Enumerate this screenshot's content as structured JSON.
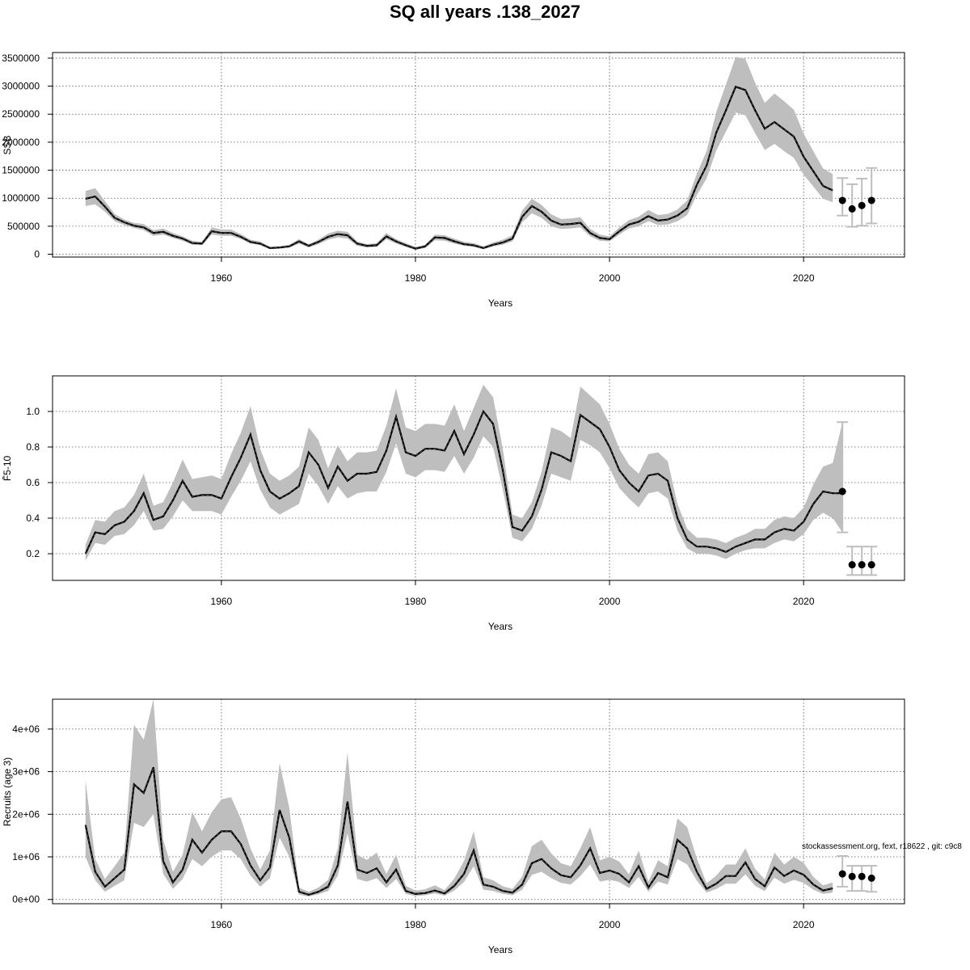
{
  "title": "SQ all years .138_2027",
  "footnote": "stockassessment.org, fext, r18622 , git: c9c8",
  "colors": {
    "band": "#bebebe",
    "line": "#000000",
    "proj_bar": "#bebebe",
    "point": "#000000",
    "grid": "#555555"
  },
  "chart_data": [
    {
      "type": "line",
      "xlabel": "Years",
      "ylabel": "SSB",
      "xlim": [
        1942.6,
        2030.4
      ],
      "ylim": [
        -50000,
        3600000
      ],
      "xticks": [
        1960,
        1980,
        2000,
        2020
      ],
      "yticks": [
        0,
        500000,
        1000000,
        1500000,
        2000000,
        2500000,
        3000000,
        3500000
      ],
      "ytick_labels": [
        "0",
        "500000",
        "1000000",
        "1500000",
        "2000000",
        "2500000",
        "3000000",
        "3500000"
      ],
      "grid": true,
      "x": [
        1946,
        1947,
        1948,
        1949,
        1950,
        1951,
        1952,
        1953,
        1954,
        1955,
        1956,
        1957,
        1958,
        1959,
        1960,
        1961,
        1962,
        1963,
        1964,
        1965,
        1966,
        1967,
        1968,
        1969,
        1970,
        1971,
        1972,
        1973,
        1974,
        1975,
        1976,
        1977,
        1978,
        1979,
        1980,
        1981,
        1982,
        1983,
        1984,
        1985,
        1986,
        1987,
        1988,
        1989,
        1990,
        1991,
        1992,
        1993,
        1994,
        1995,
        1996,
        1997,
        1998,
        1999,
        2000,
        2001,
        2002,
        2003,
        2004,
        2005,
        2006,
        2007,
        2008,
        2009,
        2010,
        2011,
        2012,
        2013,
        2014,
        2015,
        2016,
        2017,
        2018,
        2019,
        2020,
        2021,
        2022,
        2023
      ],
      "estimate": [
        990000,
        1030000,
        850000,
        650000,
        570000,
        510000,
        480000,
        380000,
        400000,
        330000,
        280000,
        200000,
        190000,
        410000,
        380000,
        380000,
        310000,
        220000,
        190000,
        110000,
        120000,
        140000,
        230000,
        150000,
        220000,
        310000,
        360000,
        340000,
        190000,
        150000,
        160000,
        320000,
        230000,
        160000,
        100000,
        140000,
        300000,
        290000,
        230000,
        180000,
        160000,
        110000,
        170000,
        210000,
        280000,
        670000,
        860000,
        760000,
        600000,
        530000,
        540000,
        560000,
        380000,
        290000,
        270000,
        410000,
        530000,
        580000,
        680000,
        600000,
        620000,
        690000,
        820000,
        1240000,
        1580000,
        2170000,
        2570000,
        2990000,
        2930000,
        2570000,
        2240000,
        2360000,
        2230000,
        2100000,
        1740000,
        1480000,
        1220000,
        1140000
      ],
      "lower": [
        860000,
        890000,
        760000,
        590000,
        520000,
        470000,
        430000,
        330000,
        350000,
        290000,
        240000,
        170000,
        160000,
        350000,
        330000,
        330000,
        270000,
        190000,
        160000,
        90000,
        100000,
        120000,
        190000,
        120000,
        180000,
        260000,
        300000,
        280000,
        150000,
        120000,
        130000,
        270000,
        190000,
        130000,
        80000,
        110000,
        250000,
        240000,
        190000,
        150000,
        130000,
        90000,
        140000,
        170000,
        230000,
        570000,
        730000,
        650000,
        500000,
        450000,
        460000,
        480000,
        320000,
        240000,
        230000,
        350000,
        460000,
        500000,
        590000,
        520000,
        530000,
        590000,
        700000,
        1060000,
        1350000,
        1850000,
        2190000,
        2530000,
        2480000,
        2160000,
        1860000,
        1970000,
        1840000,
        1720000,
        1420000,
        1210000,
        990000,
        930000
      ],
      "upper": [
        1130000,
        1180000,
        950000,
        720000,
        620000,
        560000,
        540000,
        430000,
        460000,
        380000,
        320000,
        240000,
        220000,
        480000,
        440000,
        440000,
        360000,
        260000,
        230000,
        130000,
        140000,
        170000,
        270000,
        180000,
        260000,
        370000,
        420000,
        400000,
        230000,
        180000,
        200000,
        380000,
        270000,
        200000,
        130000,
        170000,
        350000,
        340000,
        280000,
        220000,
        200000,
        140000,
        210000,
        260000,
        340000,
        780000,
        990000,
        880000,
        710000,
        630000,
        640000,
        660000,
        450000,
        350000,
        320000,
        480000,
        610000,
        670000,
        790000,
        700000,
        720000,
        800000,
        960000,
        1440000,
        1840000,
        2540000,
        3030000,
        3520000,
        3490000,
        3060000,
        2700000,
        2870000,
        2730000,
        2580000,
        2150000,
        1840000,
        1530000,
        1430000
      ],
      "projection": {
        "x": [
          2024,
          2025,
          2026,
          2027
        ],
        "value": [
          960000,
          810000,
          870000,
          960000
        ],
        "low": [
          690000,
          490000,
          510000,
          550000
        ],
        "high": [
          1360000,
          1250000,
          1350000,
          1540000
        ]
      }
    },
    {
      "type": "line",
      "xlabel": "Years",
      "ylabel": "F̄5-10",
      "xlim": [
        1942.6,
        2030.4
      ],
      "ylim": [
        0.05,
        1.2
      ],
      "xticks": [
        1960,
        1980,
        2000,
        2020
      ],
      "yticks": [
        0.2,
        0.4,
        0.6,
        0.8,
        1.0
      ],
      "ytick_labels": [
        "0.2",
        "0.4",
        "0.6",
        "0.8",
        "1.0"
      ],
      "grid": true,
      "x": [
        1946,
        1947,
        1948,
        1949,
        1950,
        1951,
        1952,
        1953,
        1954,
        1955,
        1956,
        1957,
        1958,
        1959,
        1960,
        1961,
        1962,
        1963,
        1964,
        1965,
        1966,
        1967,
        1968,
        1969,
        1970,
        1971,
        1972,
        1973,
        1974,
        1975,
        1976,
        1977,
        1978,
        1979,
        1980,
        1981,
        1982,
        1983,
        1984,
        1985,
        1986,
        1987,
        1988,
        1989,
        1990,
        1991,
        1992,
        1993,
        1994,
        1995,
        1996,
        1997,
        1998,
        1999,
        2000,
        2001,
        2002,
        2003,
        2004,
        2005,
        2006,
        2007,
        2008,
        2009,
        2010,
        2011,
        2012,
        2013,
        2014,
        2015,
        2016,
        2017,
        2018,
        2019,
        2020,
        2021,
        2022,
        2023,
        2024
      ],
      "estimate": [
        0.2,
        0.32,
        0.31,
        0.36,
        0.38,
        0.44,
        0.54,
        0.39,
        0.41,
        0.5,
        0.61,
        0.52,
        0.53,
        0.53,
        0.51,
        0.63,
        0.74,
        0.87,
        0.67,
        0.55,
        0.51,
        0.54,
        0.58,
        0.77,
        0.7,
        0.57,
        0.69,
        0.61,
        0.65,
        0.65,
        0.66,
        0.78,
        0.97,
        0.77,
        0.75,
        0.79,
        0.79,
        0.78,
        0.89,
        0.76,
        0.87,
        1.0,
        0.93,
        0.67,
        0.35,
        0.33,
        0.41,
        0.56,
        0.77,
        0.75,
        0.72,
        0.98,
        0.94,
        0.9,
        0.8,
        0.67,
        0.6,
        0.55,
        0.64,
        0.65,
        0.61,
        0.4,
        0.28,
        0.24,
        0.24,
        0.23,
        0.21,
        0.24,
        0.26,
        0.28,
        0.28,
        0.32,
        0.34,
        0.33,
        0.38,
        0.48,
        0.55,
        0.54,
        0.54
      ],
      "lower": [
        0.16,
        0.26,
        0.25,
        0.3,
        0.31,
        0.36,
        0.44,
        0.33,
        0.34,
        0.41,
        0.5,
        0.44,
        0.44,
        0.44,
        0.42,
        0.52,
        0.61,
        0.72,
        0.56,
        0.46,
        0.42,
        0.45,
        0.48,
        0.65,
        0.58,
        0.48,
        0.58,
        0.51,
        0.54,
        0.55,
        0.55,
        0.66,
        0.82,
        0.65,
        0.63,
        0.67,
        0.67,
        0.66,
        0.75,
        0.65,
        0.74,
        0.86,
        0.8,
        0.56,
        0.29,
        0.27,
        0.34,
        0.47,
        0.65,
        0.63,
        0.61,
        0.84,
        0.81,
        0.77,
        0.68,
        0.57,
        0.51,
        0.46,
        0.54,
        0.55,
        0.51,
        0.33,
        0.23,
        0.2,
        0.2,
        0.19,
        0.17,
        0.2,
        0.22,
        0.23,
        0.23,
        0.26,
        0.28,
        0.27,
        0.31,
        0.39,
        0.43,
        0.4,
        0.32
      ],
      "upper": [
        0.25,
        0.39,
        0.38,
        0.44,
        0.46,
        0.53,
        0.65,
        0.47,
        0.49,
        0.6,
        0.73,
        0.62,
        0.63,
        0.64,
        0.62,
        0.76,
        0.88,
        1.03,
        0.79,
        0.65,
        0.61,
        0.64,
        0.69,
        0.91,
        0.84,
        0.68,
        0.81,
        0.72,
        0.77,
        0.77,
        0.78,
        0.92,
        1.13,
        0.91,
        0.89,
        0.93,
        0.93,
        0.92,
        1.04,
        0.89,
        1.02,
        1.15,
        1.08,
        0.79,
        0.42,
        0.4,
        0.49,
        0.66,
        0.91,
        0.89,
        0.85,
        1.14,
        1.09,
        1.04,
        0.93,
        0.79,
        0.7,
        0.65,
        0.76,
        0.77,
        0.72,
        0.48,
        0.34,
        0.29,
        0.29,
        0.28,
        0.26,
        0.29,
        0.31,
        0.34,
        0.34,
        0.39,
        0.41,
        0.4,
        0.46,
        0.59,
        0.69,
        0.71,
        0.94
      ],
      "projection": {
        "x": [
          2024,
          2025,
          2026,
          2027
        ],
        "value": [
          0.55,
          0.138,
          0.138,
          0.138
        ],
        "low": [
          0.32,
          0.08,
          0.08,
          0.08
        ],
        "high": [
          0.94,
          0.24,
          0.24,
          0.24
        ]
      }
    },
    {
      "type": "line",
      "xlabel": "Years",
      "ylabel": "Recruits (age 3)",
      "xlim": [
        1942.6,
        2030.4
      ],
      "ylim": [
        -100000,
        4700000
      ],
      "xticks": [
        1960,
        1980,
        2000,
        2020
      ],
      "yticks": [
        0,
        1000000,
        2000000,
        3000000,
        4000000
      ],
      "ytick_labels": [
        "0e+00",
        "1e+06",
        "2e+06",
        "3e+06",
        "4e+06"
      ],
      "grid": true,
      "x": [
        1946,
        1947,
        1948,
        1949,
        1950,
        1951,
        1952,
        1953,
        1954,
        1955,
        1956,
        1957,
        1958,
        1959,
        1960,
        1961,
        1962,
        1963,
        1964,
        1965,
        1966,
        1967,
        1968,
        1969,
        1970,
        1971,
        1972,
        1973,
        1974,
        1975,
        1976,
        1977,
        1978,
        1979,
        1980,
        1981,
        1982,
        1983,
        1984,
        1985,
        1986,
        1987,
        1988,
        1989,
        1990,
        1991,
        1992,
        1993,
        1994,
        1995,
        1996,
        1997,
        1998,
        1999,
        2000,
        2001,
        2002,
        2003,
        2004,
        2005,
        2006,
        2007,
        2008,
        2009,
        2010,
        2011,
        2012,
        2013,
        2014,
        2015,
        2016,
        2017,
        2018,
        2019,
        2020,
        2021,
        2022,
        2023
      ],
      "estimate": [
        1750000,
        650000,
        300000,
        500000,
        700000,
        2700000,
        2500000,
        3100000,
        900000,
        400000,
        700000,
        1400000,
        1100000,
        1400000,
        1600000,
        1600000,
        1300000,
        800000,
        450000,
        750000,
        2100000,
        1450000,
        180000,
        110000,
        180000,
        300000,
        800000,
        2300000,
        700000,
        620000,
        730000,
        400000,
        700000,
        200000,
        130000,
        150000,
        210000,
        140000,
        320000,
        600000,
        1150000,
        350000,
        300000,
        200000,
        160000,
        350000,
        850000,
        950000,
        730000,
        570000,
        520000,
        800000,
        1200000,
        620000,
        680000,
        600000,
        400000,
        780000,
        280000,
        620000,
        520000,
        1400000,
        1200000,
        650000,
        250000,
        370000,
        550000,
        550000,
        870000,
        480000,
        310000,
        750000,
        550000,
        680000,
        580000,
        350000,
        210000,
        260000
      ],
      "lower": [
        1000000,
        450000,
        180000,
        320000,
        450000,
        1800000,
        1700000,
        2000000,
        600000,
        250000,
        480000,
        950000,
        780000,
        1000000,
        1150000,
        1150000,
        950000,
        560000,
        300000,
        500000,
        1450000,
        1000000,
        110000,
        70000,
        120000,
        200000,
        560000,
        1550000,
        480000,
        420000,
        500000,
        270000,
        480000,
        130000,
        80000,
        100000,
        140000,
        90000,
        210000,
        410000,
        780000,
        230000,
        200000,
        130000,
        100000,
        230000,
        580000,
        650000,
        500000,
        390000,
        350000,
        550000,
        820000,
        420000,
        460000,
        410000,
        270000,
        530000,
        180000,
        420000,
        350000,
        950000,
        820000,
        440000,
        160000,
        250000,
        370000,
        370000,
        590000,
        320000,
        200000,
        510000,
        370000,
        460000,
        390000,
        230000,
        130000,
        160000
      ],
      "upper": [
        2800000,
        950000,
        480000,
        780000,
        1100000,
        4100000,
        3750000,
        4700000,
        1400000,
        650000,
        1050000,
        2050000,
        1600000,
        2050000,
        2350000,
        2400000,
        1900000,
        1200000,
        700000,
        1150000,
        3200000,
        2150000,
        280000,
        180000,
        280000,
        460000,
        1200000,
        3450000,
        1050000,
        930000,
        1100000,
        600000,
        1050000,
        320000,
        210000,
        240000,
        330000,
        220000,
        490000,
        900000,
        1600000,
        520000,
        450000,
        310000,
        250000,
        540000,
        1250000,
        1400000,
        1080000,
        850000,
        780000,
        1200000,
        1700000,
        920000,
        1000000,
        890000,
        590000,
        1150000,
        420000,
        920000,
        780000,
        1900000,
        1700000,
        960000,
        380000,
        560000,
        820000,
        820000,
        1200000,
        720000,
        470000,
        1100000,
        820000,
        1000000,
        860000,
        530000,
        330000,
        400000
      ],
      "projection": {
        "x": [
          2024,
          2025,
          2026,
          2027
        ],
        "value": [
          600000,
          540000,
          540000,
          500000
        ],
        "low": [
          300000,
          200000,
          200000,
          180000
        ],
        "high": [
          1020000,
          790000,
          790000,
          790000
        ]
      }
    }
  ]
}
